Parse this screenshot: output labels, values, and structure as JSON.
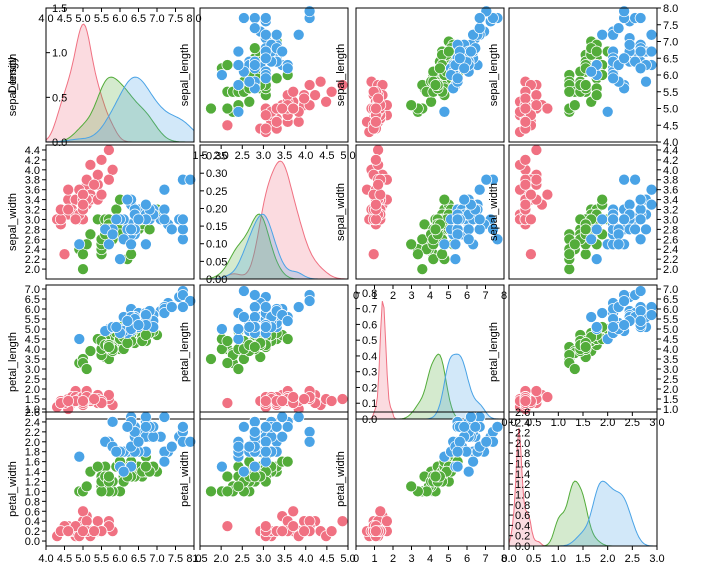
{
  "chart_data": {
    "type": "scatter",
    "title": "",
    "variables": [
      "sepal_length",
      "sepal_width",
      "petal_length",
      "petal_width"
    ],
    "density_label": "Density",
    "grid": false,
    "legend": "none",
    "species_colors": [
      "#f07182",
      "#53ac3a",
      "#4aa3e6"
    ],
    "axes": {
      "sepal_length": {
        "range": [
          4.0,
          8.0
        ],
        "ticks": [
          "4.0",
          "4.5",
          "5.0",
          "5.5",
          "6.0",
          "6.5",
          "7.0",
          "7.5",
          "8.0"
        ],
        "bottom_ticks": [
          "4.0",
          "4.5",
          "5.0",
          "5.5",
          "6.0",
          "6.5",
          "7.0",
          "7.5",
          "8.0"
        ]
      },
      "sepal_width": {
        "range": [
          1.8,
          4.5
        ],
        "ticks": [
          "2.0",
          "2.2",
          "2.4",
          "2.6",
          "2.8",
          "3.0",
          "3.2",
          "3.4",
          "3.6",
          "3.8",
          "4.0",
          "4.2",
          "4.4"
        ],
        "bottom_ticks": [
          "1.5",
          "2.0",
          "2.5",
          "3.0",
          "3.5",
          "4.0",
          "4.5",
          "5.0"
        ]
      },
      "petal_length": {
        "range": [
          0.5,
          7.2
        ],
        "ticks": [
          "1.0",
          "1.5",
          "2.0",
          "2.5",
          "3.0",
          "3.5",
          "4.0",
          "4.5",
          "5.0",
          "5.5",
          "6.0",
          "6.5",
          "7.0"
        ],
        "bottom_ticks": [
          "0",
          "1",
          "2",
          "3",
          "4",
          "5",
          "6",
          "7",
          "8"
        ]
      },
      "petal_width": {
        "range": [
          -0.1,
          2.6
        ],
        "ticks": [
          "0.0",
          "0.2",
          "0.4",
          "0.6",
          "0.8",
          "1.0",
          "1.2",
          "1.4",
          "1.6",
          "1.8",
          "2.0",
          "2.2",
          "2.4",
          "2.6"
        ],
        "bottom_ticks": [
          "0.0",
          "0.5",
          "1.0",
          "1.5",
          "2.0",
          "2.5",
          "3.0"
        ]
      }
    },
    "density_ticks": {
      "0": {
        "labels": [
          "0.0",
          "0.5",
          "1.0",
          "1.5"
        ],
        "max": 1.5
      },
      "1": {
        "labels": [
          "0.00",
          "0.05",
          "0.10",
          "0.15",
          "0.20",
          "0.25",
          "0.30",
          "0.35"
        ],
        "max": 0.38
      },
      "2": {
        "labels": [
          "0.0",
          "0.1",
          "0.2",
          "0.3",
          "0.4",
          "0.5",
          "0.6",
          "0.7",
          "0.8"
        ],
        "max": 0.85
      },
      "3": {
        "labels": [
          "0.0",
          "0.2",
          "0.4",
          "0.6",
          "0.8",
          "1.0",
          "1.2",
          "1.4",
          "1.6",
          "1.8",
          "2.0",
          "2.2",
          "2.4",
          "2.6"
        ],
        "max": 2.6
      }
    },
    "density_panel_ticks": {
      "0": [
        "4.0",
        "4.5",
        "5.0",
        "5.5",
        "6.0",
        "6.5",
        "7.0",
        "7.5",
        "8.0"
      ],
      "1": [
        "1.5",
        "2.0",
        "2.5",
        "3.0",
        "3.5",
        "4.0",
        "4.5",
        "5.0"
      ],
      "2": [
        "0",
        "1",
        "2",
        "3",
        "4",
        "5",
        "6",
        "7",
        "8"
      ],
      "3": [
        "0.0",
        "0.5",
        "1.0",
        "1.5",
        "2.0",
        "2.5",
        "3.0"
      ]
    },
    "density_ranges": {
      "0": [
        4.0,
        8.0
      ],
      "1": [
        1.5,
        5.0
      ],
      "2": [
        0,
        8
      ],
      "3": [
        0,
        3
      ]
    },
    "species": [
      {
        "sepal_length": [
          5.1,
          4.9,
          4.7,
          4.6,
          5.0,
          5.4,
          4.6,
          5.0,
          4.4,
          4.9,
          5.4,
          4.8,
          4.8,
          4.3,
          5.8,
          5.7,
          5.4,
          5.1,
          5.7,
          5.1,
          5.4,
          5.1,
          4.6,
          5.1,
          4.8,
          5.0,
          5.0,
          5.2,
          5.2,
          4.7,
          4.8,
          5.4,
          5.2,
          5.5,
          4.9,
          5.0,
          5.5,
          4.9,
          4.4,
          5.1,
          5.0,
          4.5,
          4.4,
          5.0,
          5.1,
          4.8,
          5.1,
          4.6,
          5.3,
          5.0
        ],
        "sepal_width": [
          3.5,
          3.0,
          3.2,
          3.1,
          3.6,
          3.9,
          3.4,
          3.4,
          2.9,
          3.1,
          3.7,
          3.4,
          3.0,
          3.0,
          4.0,
          4.4,
          3.9,
          3.5,
          3.8,
          3.8,
          3.4,
          3.7,
          3.6,
          3.3,
          3.4,
          3.0,
          3.4,
          3.5,
          3.4,
          3.2,
          3.1,
          3.4,
          4.1,
          4.2,
          3.1,
          3.2,
          3.5,
          3.6,
          3.0,
          3.4,
          3.5,
          2.3,
          3.2,
          3.5,
          3.8,
          3.0,
          3.8,
          3.2,
          3.7,
          3.3
        ],
        "petal_length": [
          1.4,
          1.4,
          1.3,
          1.5,
          1.4,
          1.7,
          1.4,
          1.5,
          1.4,
          1.5,
          1.5,
          1.6,
          1.4,
          1.1,
          1.2,
          1.5,
          1.3,
          1.4,
          1.7,
          1.5,
          1.7,
          1.5,
          1.0,
          1.7,
          1.9,
          1.6,
          1.6,
          1.5,
          1.4,
          1.6,
          1.6,
          1.5,
          1.5,
          1.4,
          1.5,
          1.2,
          1.3,
          1.4,
          1.3,
          1.5,
          1.3,
          1.3,
          1.3,
          1.6,
          1.9,
          1.4,
          1.6,
          1.4,
          1.5,
          1.4
        ],
        "petal_width": [
          0.2,
          0.2,
          0.2,
          0.2,
          0.2,
          0.4,
          0.3,
          0.2,
          0.2,
          0.1,
          0.2,
          0.2,
          0.1,
          0.1,
          0.2,
          0.4,
          0.4,
          0.3,
          0.3,
          0.3,
          0.2,
          0.4,
          0.2,
          0.5,
          0.2,
          0.2,
          0.4,
          0.2,
          0.2,
          0.2,
          0.2,
          0.4,
          0.1,
          0.2,
          0.2,
          0.2,
          0.2,
          0.1,
          0.2,
          0.2,
          0.3,
          0.3,
          0.2,
          0.6,
          0.4,
          0.3,
          0.2,
          0.2,
          0.2,
          0.2
        ]
      },
      {
        "sepal_length": [
          7.0,
          6.4,
          6.9,
          5.5,
          6.5,
          5.7,
          6.3,
          4.9,
          6.6,
          5.2,
          5.0,
          5.9,
          6.0,
          6.1,
          5.6,
          6.7,
          5.6,
          5.8,
          6.2,
          5.6,
          5.9,
          6.1,
          6.3,
          6.1,
          6.4,
          6.6,
          6.8,
          6.7,
          6.0,
          5.7,
          5.5,
          5.5,
          5.8,
          6.0,
          5.4,
          6.0,
          6.7,
          6.3,
          5.6,
          5.5,
          5.5,
          6.1,
          5.8,
          5.0,
          5.6,
          5.7,
          5.7,
          6.2,
          5.1,
          5.7
        ],
        "sepal_width": [
          3.2,
          3.2,
          3.1,
          2.3,
          2.8,
          2.8,
          3.3,
          2.4,
          2.9,
          2.7,
          2.0,
          3.0,
          2.2,
          2.9,
          2.9,
          3.1,
          3.0,
          2.7,
          2.2,
          2.5,
          3.2,
          2.8,
          2.5,
          2.8,
          2.9,
          3.0,
          2.8,
          3.0,
          2.9,
          2.6,
          2.4,
          2.4,
          2.7,
          2.7,
          3.0,
          3.4,
          3.1,
          2.3,
          3.0,
          2.5,
          2.6,
          3.0,
          2.6,
          2.3,
          2.7,
          3.0,
          2.9,
          2.9,
          2.5,
          2.8
        ],
        "petal_length": [
          4.7,
          4.5,
          4.9,
          4.0,
          4.6,
          4.5,
          4.7,
          3.3,
          4.6,
          3.9,
          3.5,
          4.2,
          4.0,
          4.7,
          3.6,
          4.4,
          4.5,
          4.1,
          4.5,
          3.9,
          4.8,
          4.0,
          4.9,
          4.7,
          4.3,
          4.4,
          4.8,
          5.0,
          4.5,
          3.5,
          3.8,
          3.7,
          3.9,
          5.1,
          4.5,
          4.5,
          4.7,
          4.4,
          4.1,
          4.0,
          4.4,
          4.6,
          4.0,
          3.3,
          4.2,
          4.2,
          4.2,
          4.3,
          3.0,
          4.1
        ],
        "petal_width": [
          1.4,
          1.5,
          1.5,
          1.3,
          1.5,
          1.3,
          1.6,
          1.0,
          1.3,
          1.4,
          1.0,
          1.5,
          1.0,
          1.4,
          1.3,
          1.4,
          1.5,
          1.0,
          1.5,
          1.1,
          1.8,
          1.3,
          1.5,
          1.2,
          1.3,
          1.4,
          1.4,
          1.7,
          1.5,
          1.0,
          1.1,
          1.0,
          1.2,
          1.6,
          1.5,
          1.6,
          1.5,
          1.3,
          1.3,
          1.3,
          1.2,
          1.4,
          1.2,
          1.0,
          1.3,
          1.2,
          1.3,
          1.3,
          1.1,
          1.3
        ]
      },
      {
        "sepal_length": [
          6.3,
          5.8,
          7.1,
          6.3,
          6.5,
          7.6,
          4.9,
          7.3,
          6.7,
          7.2,
          6.5,
          6.4,
          6.8,
          5.7,
          5.8,
          6.4,
          6.5,
          7.7,
          7.7,
          6.0,
          6.9,
          5.6,
          7.7,
          6.3,
          6.7,
          7.2,
          6.2,
          6.1,
          6.4,
          7.2,
          7.4,
          7.9,
          6.4,
          6.3,
          6.1,
          7.7,
          6.3,
          6.4,
          6.0,
          6.9,
          6.7,
          6.9,
          5.8,
          6.8,
          6.7,
          6.7,
          6.3,
          6.5,
          6.2,
          5.9
        ],
        "sepal_width": [
          3.3,
          2.7,
          3.0,
          2.9,
          3.0,
          3.0,
          2.5,
          2.9,
          2.5,
          3.6,
          3.2,
          2.7,
          3.0,
          2.5,
          2.8,
          3.2,
          3.0,
          3.8,
          2.6,
          2.2,
          3.2,
          2.8,
          2.8,
          2.7,
          3.3,
          3.2,
          2.8,
          3.0,
          2.8,
          3.0,
          2.8,
          3.8,
          2.8,
          2.8,
          2.6,
          3.0,
          3.4,
          3.1,
          3.0,
          3.1,
          3.1,
          3.1,
          2.7,
          3.2,
          3.3,
          3.0,
          2.5,
          3.0,
          3.4,
          3.0
        ],
        "petal_length": [
          6.0,
          5.1,
          5.9,
          5.6,
          5.8,
          6.6,
          4.5,
          6.3,
          5.8,
          6.1,
          5.1,
          5.3,
          5.5,
          5.0,
          5.1,
          5.3,
          5.5,
          6.7,
          6.9,
          5.0,
          5.7,
          4.9,
          6.7,
          4.9,
          5.7,
          6.0,
          4.8,
          4.9,
          5.6,
          5.8,
          6.1,
          6.4,
          5.6,
          5.1,
          5.6,
          6.1,
          5.6,
          5.5,
          4.8,
          5.4,
          5.6,
          5.1,
          5.1,
          5.9,
          5.7,
          5.2,
          5.0,
          5.2,
          5.4,
          5.1
        ],
        "petal_width": [
          2.5,
          1.9,
          2.1,
          1.8,
          2.2,
          2.1,
          1.7,
          1.8,
          1.8,
          2.5,
          2.0,
          1.9,
          2.1,
          2.0,
          2.4,
          2.3,
          1.8,
          2.2,
          2.3,
          1.5,
          2.3,
          2.0,
          2.0,
          1.8,
          2.1,
          1.8,
          1.8,
          1.8,
          2.1,
          1.6,
          1.9,
          2.0,
          2.2,
          1.5,
          1.4,
          2.3,
          2.4,
          1.8,
          1.8,
          2.1,
          2.4,
          2.3,
          1.9,
          2.3,
          2.5,
          2.3,
          1.9,
          2.0,
          2.3,
          1.8
        ]
      }
    ]
  }
}
